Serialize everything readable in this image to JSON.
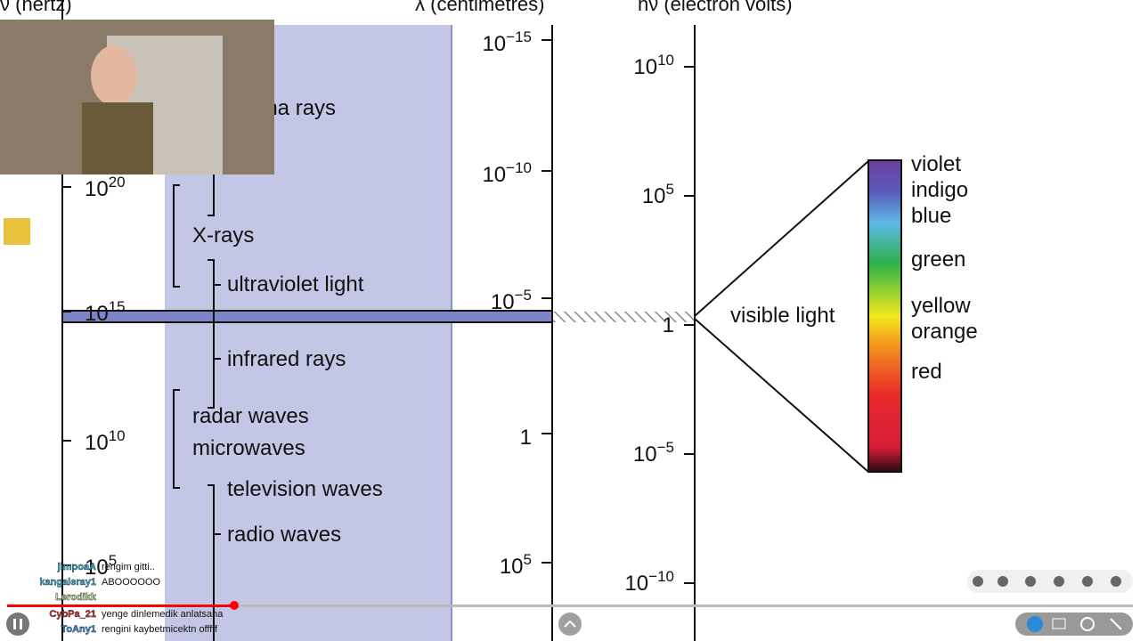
{
  "axes": {
    "frequency": "ν (hertz)",
    "wavelength": "λ (centimetres)",
    "energy": "hν (electron volts)"
  },
  "frequency_ticks": [
    {
      "base": "10",
      "exp": "20"
    },
    {
      "base": "10",
      "exp": "15"
    },
    {
      "base": "10",
      "exp": "10"
    },
    {
      "base": "10",
      "exp": "5"
    }
  ],
  "wavelength_ticks": [
    {
      "base": "10",
      "exp": "−15"
    },
    {
      "base": "10",
      "exp": "−10"
    },
    {
      "base": "10",
      "exp": "−5"
    },
    {
      "base": "1"
    },
    {
      "base": "10",
      "exp": "5"
    }
  ],
  "energy_ticks": [
    {
      "base": "10",
      "exp": "10"
    },
    {
      "base": "10",
      "exp": "5"
    },
    {
      "base": "1"
    },
    {
      "base": "10",
      "exp": "−5"
    },
    {
      "base": "10",
      "exp": "−10"
    }
  ],
  "bands": [
    "gamma rays",
    "X-rays",
    "ultraviolet light",
    "infrared rays",
    "radar waves",
    "microwaves",
    "television waves",
    "radio waves"
  ],
  "visible_light": "visible light",
  "colors": [
    "violet",
    "indigo",
    "blue",
    "green",
    "yellow",
    "orange",
    "red"
  ],
  "chat": [
    {
      "user": "jimpoaA",
      "message": "rengim gitti.."
    },
    {
      "user": "kangaleray1",
      "message": "ABOOOOOO"
    },
    {
      "user": "Lerodikk"
    },
    {
      "user": "CybPa_21",
      "message": "yenge dinlemedik anlatsana"
    },
    {
      "user": "ToAny1",
      "message": "rengini kaybetmicektn offfff"
    }
  ]
}
